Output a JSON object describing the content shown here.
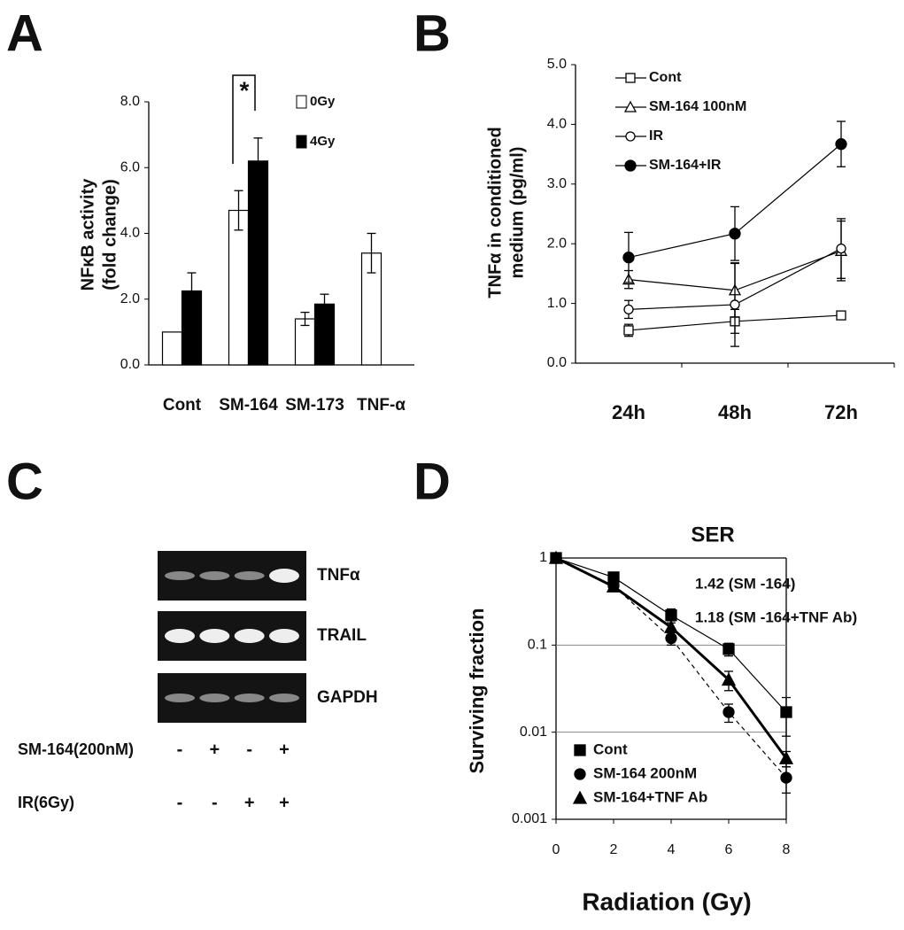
{
  "chart_data": [
    {
      "panel": "A",
      "type": "bar",
      "ylabel": [
        "NFκB activity",
        "(fold change)"
      ],
      "annotation": "*",
      "categories": [
        "Cont",
        "SM-164",
        "SM-173",
        "TNF-α"
      ],
      "series": [
        {
          "name": "0Gy",
          "color": "#ffffff",
          "values": [
            1.0,
            4.7,
            1.4,
            3.4
          ],
          "errors": [
            0,
            0.6,
            0.2,
            0.6
          ]
        },
        {
          "name": "4Gy",
          "color": "#000000",
          "values": [
            2.25,
            6.2,
            1.85,
            null
          ],
          "errors": [
            0.55,
            0.7,
            0.3,
            null
          ]
        }
      ],
      "ylim": [
        0,
        8
      ],
      "yticks": [
        {
          "value": 0,
          "label": "0.0"
        },
        {
          "value": 2,
          "label": "2.0"
        },
        {
          "value": 4,
          "label": "4.0"
        },
        {
          "value": 6,
          "label": "6.0"
        },
        {
          "value": 8,
          "label": "8.0"
        }
      ]
    },
    {
      "panel": "B",
      "type": "line",
      "ylabel": [
        "TNFα in conditioned",
        "medium (pg/ml)"
      ],
      "categories": [
        "24h",
        "48h",
        "72h"
      ],
      "series": [
        {
          "name": "Cont",
          "color": "#000000",
          "marker": "square-open",
          "values": [
            0.55,
            0.7,
            0.8
          ],
          "errors": [
            0.1,
            0.2,
            0.05
          ]
        },
        {
          "name": "SM-164 100nM",
          "color": "#000000",
          "marker": "triangle-open",
          "values": [
            1.4,
            1.22,
            1.88
          ],
          "errors": [
            0.15,
            0.45,
            0.5
          ]
        },
        {
          "name": "IR",
          "color": "#000000",
          "marker": "circle-open",
          "values": [
            0.9,
            0.98,
            1.92
          ],
          "errors": [
            0.15,
            0.7,
            0.5
          ]
        },
        {
          "name": "SM-164+IR",
          "color": "#000000",
          "marker": "circle-filled",
          "values": [
            1.77,
            2.17,
            3.67
          ],
          "errors": [
            0.42,
            0.45,
            0.38
          ]
        }
      ],
      "ylim": [
        0,
        5
      ],
      "yticks": [
        {
          "value": 0,
          "label": "0.0"
        },
        {
          "value": 1,
          "label": "1.0"
        },
        {
          "value": 2,
          "label": "2.0"
        },
        {
          "value": 3,
          "label": "3.0"
        },
        {
          "value": 4,
          "label": "4.0"
        },
        {
          "value": 5,
          "label": "5.0"
        }
      ]
    },
    {
      "panel": "C",
      "type": "gel",
      "bands": [
        "TNFα",
        "TRAIL",
        "GAPDH"
      ],
      "conditions": [
        {
          "name": "SM-164(200nM)",
          "values": [
            "-",
            "+",
            "-",
            "+"
          ]
        },
        {
          "name": "IR(6Gy)",
          "values": [
            "-",
            "-",
            "+",
            "+"
          ]
        }
      ]
    },
    {
      "panel": "D",
      "type": "line",
      "title": "SER",
      "annotations": [
        "1.42 (SM -164)",
        "1.18 (SM -164+TNF Ab)"
      ],
      "xlabel": "Radiation (Gy)",
      "ylabel": "Surviving fraction",
      "x": [
        0,
        2,
        4,
        6,
        8
      ],
      "series": [
        {
          "name": "Cont",
          "color": "#000000",
          "marker": "square-filled",
          "line_style": "thin",
          "values": [
            1,
            0.6,
            0.22,
            0.09,
            0.017
          ],
          "errors": [
            0,
            0.08,
            0.04,
            0.015,
            0.008
          ]
        },
        {
          "name": "SM-164 200nM",
          "color": "#000000",
          "marker": "circle-filled",
          "line_style": "dashed",
          "values": [
            1,
            0.48,
            0.12,
            0.017,
            0.003
          ],
          "errors": [
            0,
            0.05,
            0.02,
            0.004,
            0.001
          ]
        },
        {
          "name": "SM-164+TNF Ab",
          "color": "#000000",
          "marker": "triangle-filled",
          "line_style": "thick",
          "values": [
            1,
            0.47,
            0.16,
            0.04,
            0.005
          ],
          "errors": [
            0,
            0.05,
            0.03,
            0.01,
            0.001
          ]
        }
      ],
      "xlim": [
        0,
        8
      ],
      "xticks": [
        0,
        2,
        4,
        6,
        8
      ],
      "ylim": [
        0.001,
        1
      ],
      "yticks": [
        0.001,
        0.01,
        0.1,
        1
      ],
      "log_y": true,
      "grid": true
    }
  ]
}
